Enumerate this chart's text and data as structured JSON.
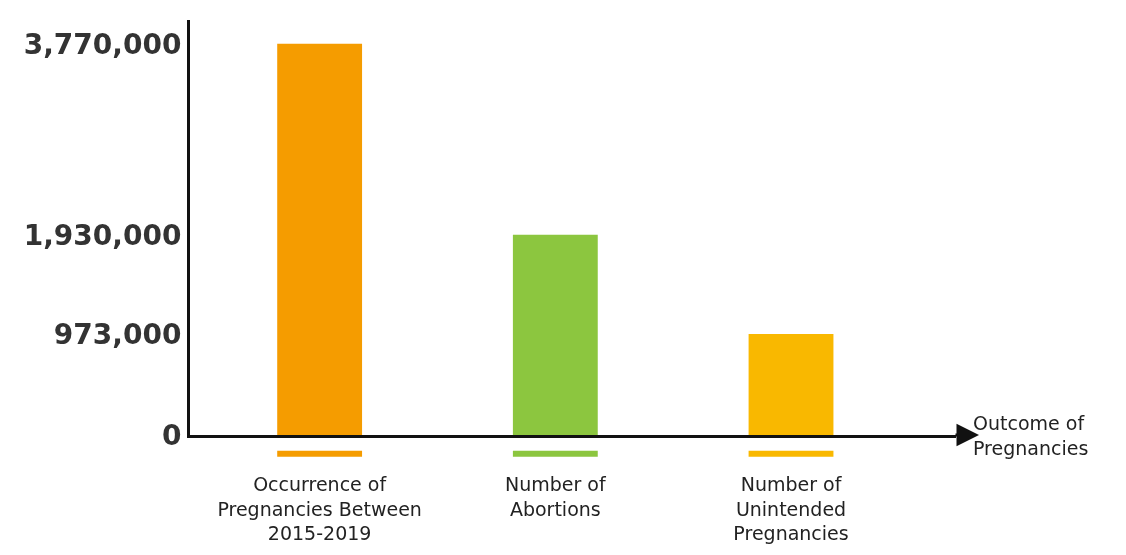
{
  "chart_data": {
    "type": "bar",
    "categories": [
      "Occurrence of\nPregnancies Between\n2015-2019",
      "Number of\nAbortions",
      "Number of\nUnintended\nPregnancies"
    ],
    "values": [
      3770000,
      1930000,
      973000
    ],
    "colors": [
      "#f59c00",
      "#8cc63f",
      "#f9b800"
    ],
    "xlabel": "Outcome of\nPregnancies",
    "ylim": [
      0,
      4000000
    ],
    "yticks": [
      {
        "value": 0,
        "label": "0"
      },
      {
        "value": 973000,
        "label": "973,000"
      },
      {
        "value": 1930000,
        "label": "1,930,000"
      },
      {
        "value": 3770000,
        "label": "3,770,000"
      }
    ]
  }
}
